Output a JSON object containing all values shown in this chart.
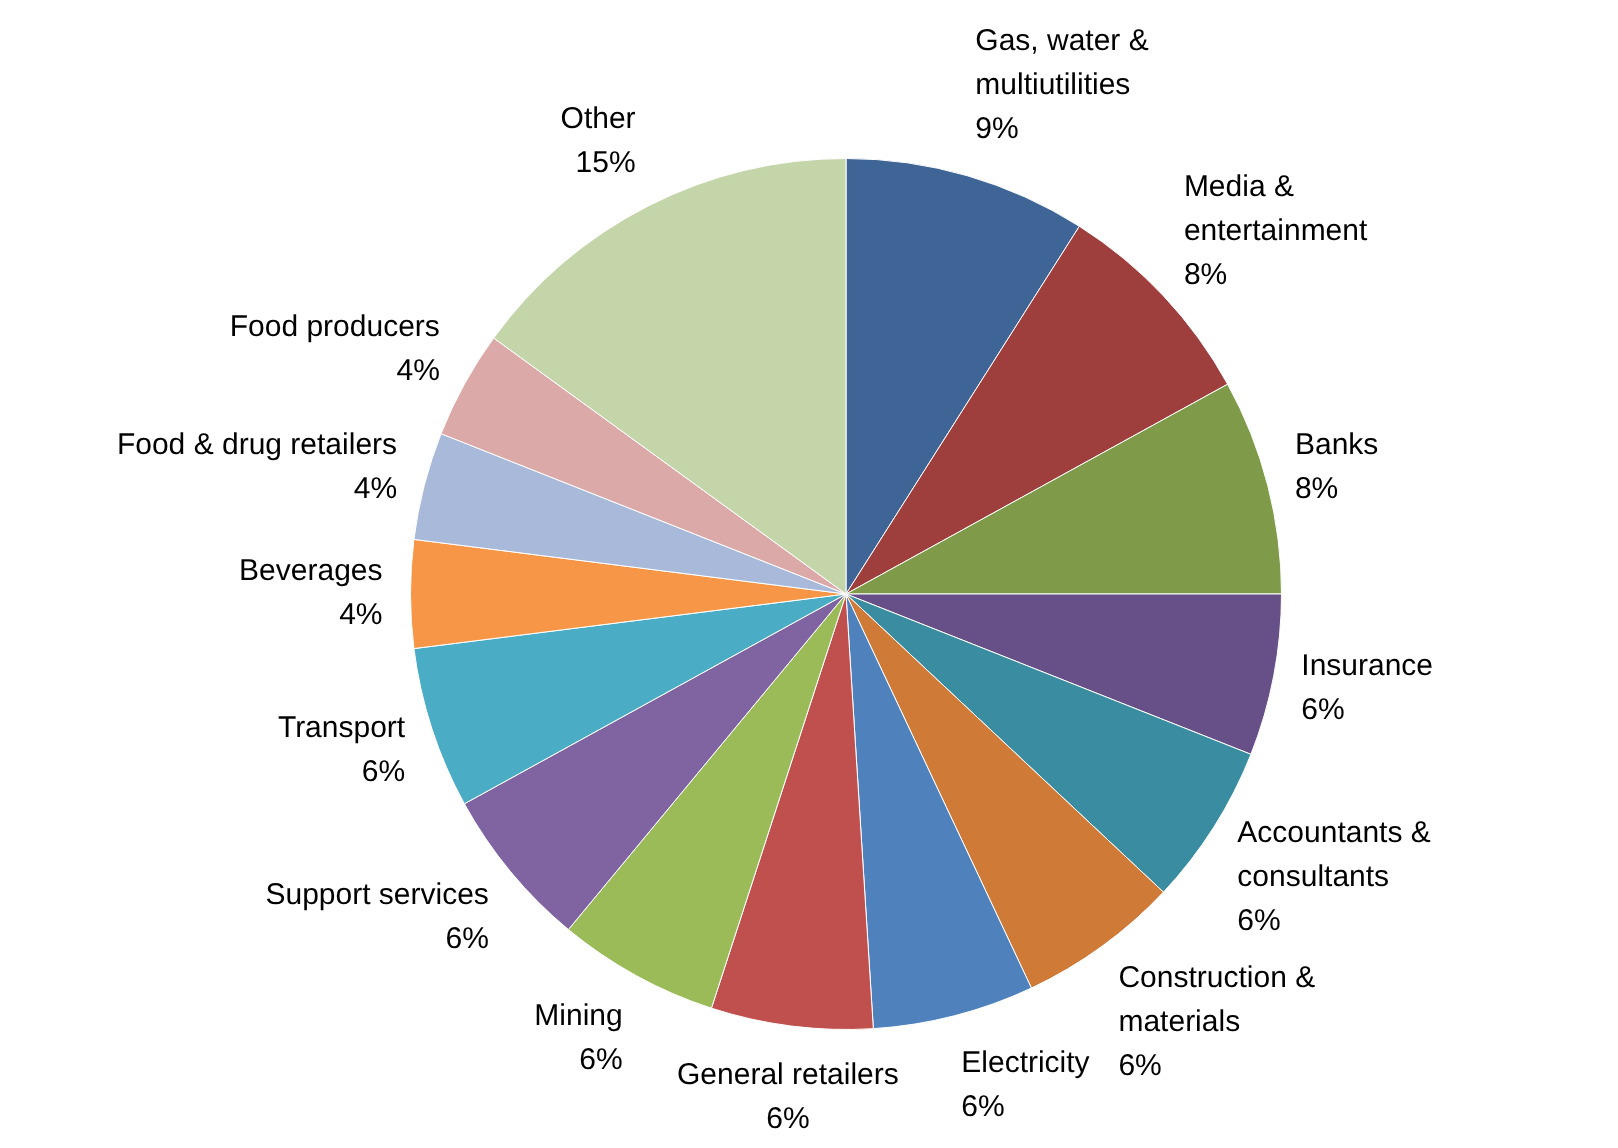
{
  "chart_data": {
    "type": "pie",
    "categories": [
      "Gas, water & multiutilities",
      "Media & entertainment",
      "Banks",
      "Insurance",
      "Accountants & consultants",
      "Construction & materials",
      "Electricity",
      "General retailers",
      "Mining",
      "Support services",
      "Transport",
      "Beverages",
      "Food & drug retailers",
      "Food producers",
      "Other"
    ],
    "values": [
      9,
      8,
      8,
      6,
      6,
      6,
      6,
      6,
      6,
      6,
      6,
      4,
      4,
      4,
      15
    ],
    "value_labels": [
      "9%",
      "8%",
      "8%",
      "6%",
      "6%",
      "6%",
      "6%",
      "6%",
      "6%",
      "6%",
      "6%",
      "4%",
      "4%",
      "4%",
      "15%"
    ],
    "colors": [
      "#3f6597",
      "#9e3f3e",
      "#7f9a48",
      "#674f87",
      "#3a8ca0",
      "#cf7a37",
      "#4f81bd",
      "#c0504d",
      "#9bbb59",
      "#8064a2",
      "#4bacc6",
      "#f79646",
      "#a9b9d9",
      "#dba9a8",
      "#c4d5aa"
    ],
    "legend": false
  }
}
